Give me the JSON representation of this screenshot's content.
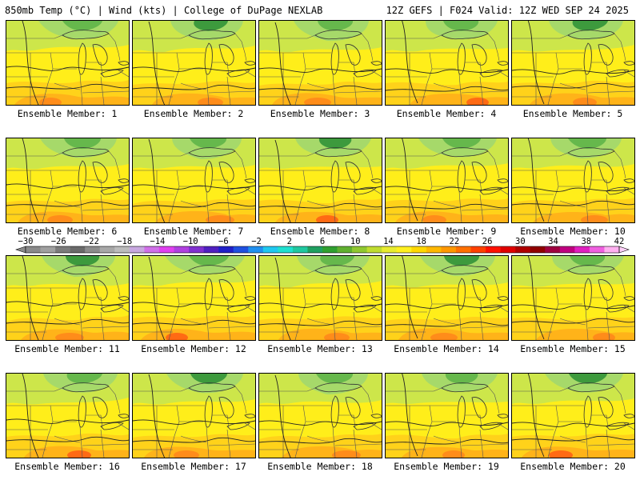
{
  "header": {
    "left": "850mb Temp (°C) | Wind (kts) | College of DuPage NEXLAB",
    "right": "12Z GEFS | F024 Valid: 12Z WED SEP 24 2025"
  },
  "members": [
    {
      "label": "Ensemble Member: 1"
    },
    {
      "label": "Ensemble Member: 2"
    },
    {
      "label": "Ensemble Member: 3"
    },
    {
      "label": "Ensemble Member: 4"
    },
    {
      "label": "Ensemble Member: 5"
    },
    {
      "label": "Ensemble Member: 6"
    },
    {
      "label": "Ensemble Member: 7"
    },
    {
      "label": "Ensemble Member: 8"
    },
    {
      "label": "Ensemble Member: 9"
    },
    {
      "label": "Ensemble Member: 10"
    },
    {
      "label": "Ensemble Member: 11"
    },
    {
      "label": "Ensemble Member: 12"
    },
    {
      "label": "Ensemble Member: 13"
    },
    {
      "label": "Ensemble Member: 14"
    },
    {
      "label": "Ensemble Member: 15"
    },
    {
      "label": "Ensemble Member: 16"
    },
    {
      "label": "Ensemble Member: 17"
    },
    {
      "label": "Ensemble Member: 18"
    },
    {
      "label": "Ensemble Member: 19"
    },
    {
      "label": "Ensemble Member: 20"
    }
  ],
  "colorbar": {
    "tick_labels": [
      "−30",
      "−26",
      "−22",
      "−18",
      "−14",
      "−10",
      "−6",
      "−2",
      "2",
      "6",
      "10",
      "14",
      "18",
      "22",
      "26",
      "30",
      "34",
      "38",
      "42"
    ],
    "colors": [
      "#8a8a8a",
      "#a0a0a0",
      "#7b7b7b",
      "#6a6a6a",
      "#8c8c8c",
      "#a8a8a8",
      "#bcbcbc",
      "#c8a8e0",
      "#d070e8",
      "#e040f0",
      "#b040e0",
      "#8030d0",
      "#5020c0",
      "#2020c8",
      "#2050e0",
      "#2090f0",
      "#20c8f0",
      "#20e0d0",
      "#20c8a0",
      "#20a060",
      "#30a030",
      "#60b030",
      "#90c830",
      "#c0dc30",
      "#e8ec30",
      "#fff020",
      "#ffd800",
      "#ffb800",
      "#ff9800",
      "#ff7000",
      "#ff4000",
      "#ff1000",
      "#e00000",
      "#b00000",
      "#900000",
      "#a00040",
      "#c00080",
      "#e020c0",
      "#f060e0",
      "#ffb0f0"
    ]
  },
  "field_colors": {
    "light_green": "#a6d96a",
    "green": "#66b84c",
    "dark_green": "#3d9a3d",
    "yellow_green": "#cde64a",
    "yellow": "#ffee1a",
    "gold": "#ffd21a",
    "orange": "#ffb319",
    "dark_orange": "#ff8c1a",
    "red_orange": "#ff6a14"
  }
}
